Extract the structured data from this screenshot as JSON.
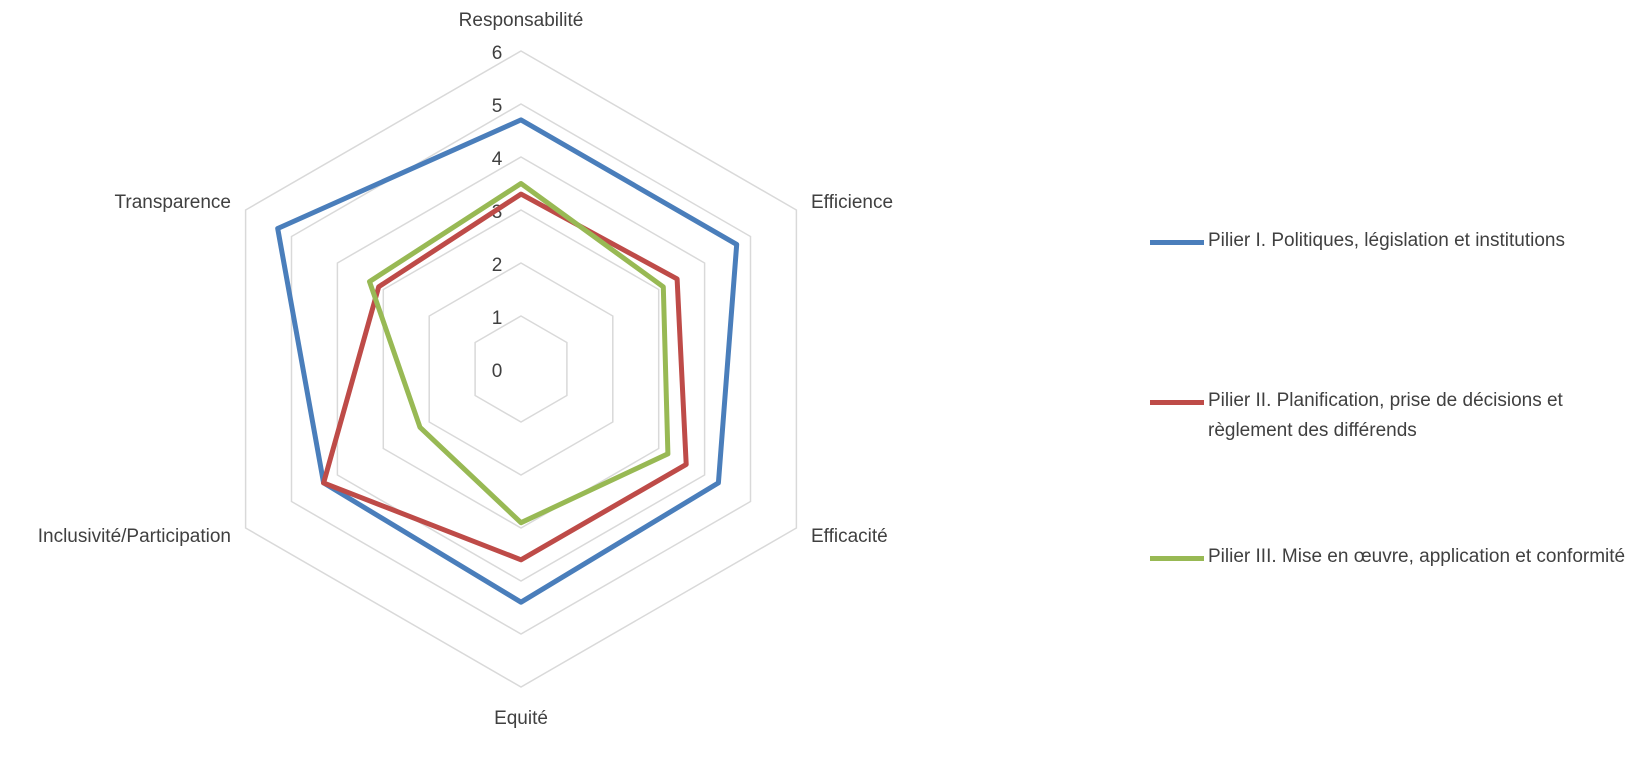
{
  "chart_data": {
    "type": "radar",
    "axes": [
      "Responsabilité",
      "Efficience",
      "Efficacité",
      "Equité",
      "Inclusivité/Participation",
      "Transparence"
    ],
    "rlim": [
      0,
      6
    ],
    "ticks": [
      "0",
      "1",
      "2",
      "3",
      "4",
      "5",
      "6"
    ],
    "grid": true,
    "legend": "right",
    "series": [
      {
        "name": "Pilier I. Politiques, législation et institutions",
        "color": "#4a7ebb",
        "values": [
          4.7,
          4.7,
          4.3,
          4.4,
          4.3,
          5.3
        ]
      },
      {
        "name": "Pilier II. Planification, prise de décisions et règlement des différends",
        "color": "#be4b48",
        "values": [
          3.3,
          3.4,
          3.6,
          3.6,
          4.3,
          3.1
        ]
      },
      {
        "name": "Pilier III. Mise en œuvre, application et conformité",
        "color": "#98b954",
        "values": [
          3.5,
          3.1,
          3.2,
          2.9,
          2.2,
          3.3
        ]
      }
    ]
  }
}
